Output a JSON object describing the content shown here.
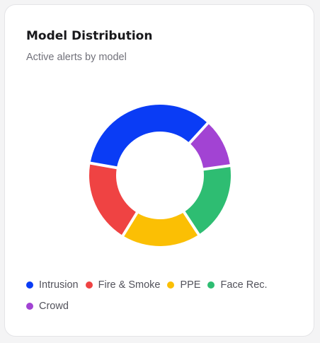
{
  "card": {
    "title": "Model Distribution",
    "subtitle": "Active alerts by model"
  },
  "colors": {
    "background": "#ffffff",
    "title": "#18181b",
    "subtitle": "#71717a",
    "legend_text": "#52525b"
  },
  "chart_data": {
    "type": "pie",
    "variant": "donut",
    "title": "Model Distribution",
    "subtitle": "Active alerts by model",
    "legend_position": "bottom",
    "categories": [
      "Intrusion",
      "Fire & Smoke",
      "PPE",
      "Face Rec.",
      "Crowd"
    ],
    "values": [
      34,
      19,
      18,
      18,
      11
    ],
    "colors": [
      "#0a3cf5",
      "#ef4343",
      "#fbbf04",
      "#2ebd72",
      "#a243d3"
    ],
    "order_clockwise": [
      "Intrusion",
      "Crowd",
      "Face Rec.",
      "PPE",
      "Fire & Smoke"
    ]
  }
}
